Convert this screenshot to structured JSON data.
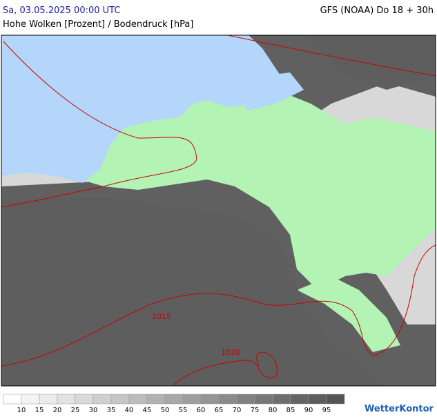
{
  "header": {
    "valid_time": "Sa, 03.05.2025 00:00 UTC",
    "model_run": "GFS (NOAA) Do 18 + 30h",
    "subtitle": "Hohe Wolken [Prozent] / Bodendruck [hPa]"
  },
  "isobars": [
    {
      "label": "1015"
    },
    {
      "label": "1020"
    }
  ],
  "legend": {
    "labels": [
      "10",
      "15",
      "20",
      "25",
      "30",
      "35",
      "40",
      "45",
      "50",
      "55",
      "60",
      "65",
      "70",
      "75",
      "80",
      "85",
      "90",
      "95"
    ],
    "colors": [
      "#ffffff",
      "#f4f4f4",
      "#ebebeb",
      "#e2e2e2",
      "#d9d9d9",
      "#cfcfcf",
      "#c6c6c6",
      "#bcbcbc",
      "#b2b2b2",
      "#a8a8a8",
      "#9e9e9e",
      "#959595",
      "#8b8b8b",
      "#818181",
      "#777777",
      "#6e6e6e",
      "#656565",
      "#5d5d5d",
      "#555555"
    ]
  },
  "logo": "WetterKontor"
}
